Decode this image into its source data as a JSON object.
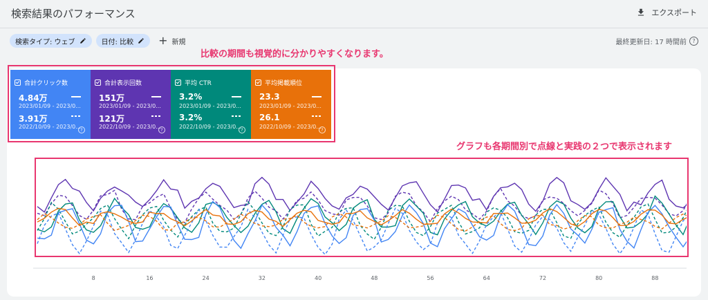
{
  "header": {
    "title": "検索結果のパフォーマンス",
    "export_label": "エクスポート"
  },
  "filters": {
    "chips": [
      "検索タイプ: ウェブ",
      "日付: 比較"
    ],
    "new_label": "新規"
  },
  "updated_text": "最終更新日: 17 時間前",
  "annotations": {
    "top": "比較の期間も視覚的に分かりやすくなります。",
    "chart": "グラフも各期間別で点線と実践の２つで表示されます"
  },
  "metrics": [
    {
      "label": "合計クリック数",
      "value": "4.84万",
      "range": "2023/01/09 - 2023/0...",
      "compare_value": "3.91万",
      "compare_range": "2022/10/09 - 2023/0...",
      "color": "#4285f4"
    },
    {
      "label": "合計表示回数",
      "value": "151万",
      "range": "2023/01/09 - 2023/0...",
      "compare_value": "121万",
      "compare_range": "2022/10/09 - 2023/0...",
      "color": "#5e35b1"
    },
    {
      "label": "平均 CTR",
      "value": "3.2%",
      "range": "2023/01/09 - 2023/0...",
      "compare_value": "3.2%",
      "compare_range": "2022/10/09 - 2023/0...",
      "color": "#00897b"
    },
    {
      "label": "平均掲載順位",
      "value": "23.3",
      "range": "2023/01/09 - 2023/0...",
      "compare_value": "26.1",
      "compare_range": "2022/10/09 - 2023/0...",
      "color": "#e8710a"
    }
  ],
  "chart_data": {
    "type": "line",
    "x_ticks": [
      "8",
      "16",
      "24",
      "32",
      "40",
      "48",
      "56",
      "64",
      "72",
      "80",
      "88"
    ],
    "x_range": [
      0,
      92
    ],
    "colors": {
      "clicks": "#4285f4",
      "impressions": "#5e35b1",
      "ctr": "#00897b",
      "position": "#e8710a"
    }
  }
}
